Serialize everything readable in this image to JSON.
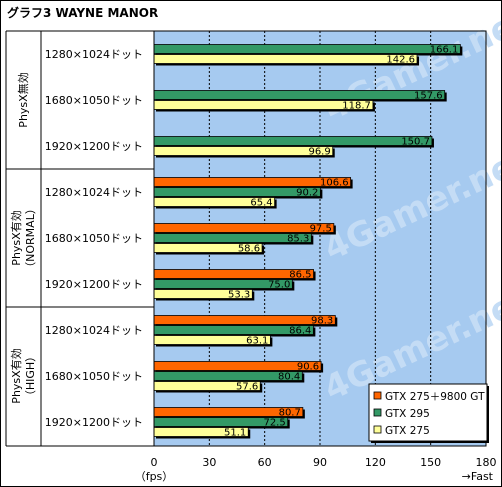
{
  "chart_data": {
    "type": "bar",
    "orientation": "horizontal",
    "title": "グラフ3 WAYNE MANOR",
    "xlabel_unit": "（fps）",
    "x_direction_note": "→Fast",
    "xlim": [
      0,
      180
    ],
    "xticks": [
      "0",
      "30",
      "60",
      "90",
      "120",
      "150",
      "180"
    ],
    "grid": true,
    "legend_position": "bottom-right",
    "colors": {
      "GTX 275＋9800 GT": "#ff6600",
      "GTX 295": "#339966",
      "GTX 275": "#ffff99",
      "plot_bg": "#a6caf0"
    },
    "groups": [
      {
        "label": "PhysX無効",
        "rows": [
          {
            "resolution": "1280×1024ドット",
            "bars": [
              {
                "series": "GTX 295",
                "value": 166.1
              },
              {
                "series": "GTX 275",
                "value": 142.6
              }
            ]
          },
          {
            "resolution": "1680×1050ドット",
            "bars": [
              {
                "series": "GTX 295",
                "value": 157.6
              },
              {
                "series": "GTX 275",
                "value": 118.7
              }
            ]
          },
          {
            "resolution": "1920×1200ドット",
            "bars": [
              {
                "series": "GTX 295",
                "value": 150.7
              },
              {
                "series": "GTX 275",
                "value": 96.9
              }
            ]
          }
        ]
      },
      {
        "label": "PhysX有効（NORMAL）",
        "label_lines": [
          "PhysX有効",
          "（NORMAL）"
        ],
        "rows": [
          {
            "resolution": "1280×1024ドット",
            "bars": [
              {
                "series": "GTX 275＋9800 GT",
                "value": 106.6
              },
              {
                "series": "GTX 295",
                "value": 90.2
              },
              {
                "series": "GTX 275",
                "value": 65.4
              }
            ]
          },
          {
            "resolution": "1680×1050ドット",
            "bars": [
              {
                "series": "GTX 275＋9800 GT",
                "value": 97.5
              },
              {
                "series": "GTX 295",
                "value": 85.3
              },
              {
                "series": "GTX 275",
                "value": 58.6
              }
            ]
          },
          {
            "resolution": "1920×1200ドット",
            "bars": [
              {
                "series": "GTX 275＋9800 GT",
                "value": 86.5
              },
              {
                "series": "GTX 295",
                "value": 75.0
              },
              {
                "series": "GTX 275",
                "value": 53.3
              }
            ]
          }
        ]
      },
      {
        "label": "PhysX有効（HIGH）",
        "label_lines": [
          "PhysX有効",
          "（HIGH）"
        ],
        "rows": [
          {
            "resolution": "1280×1024ドット",
            "bars": [
              {
                "series": "GTX 275＋9800 GT",
                "value": 98.3
              },
              {
                "series": "GTX 295",
                "value": 86.4
              },
              {
                "series": "GTX 275",
                "value": 63.1
              }
            ]
          },
          {
            "resolution": "1680×1050ドット",
            "bars": [
              {
                "series": "GTX 275＋9800 GT",
                "value": 90.6
              },
              {
                "series": "GTX 295",
                "value": 80.4
              },
              {
                "series": "GTX 275",
                "value": 57.6
              }
            ]
          },
          {
            "resolution": "1920×1200ドット",
            "bars": [
              {
                "series": "GTX 275＋9800 GT",
                "value": 80.7
              },
              {
                "series": "GTX 295",
                "value": 72.5
              },
              {
                "series": "GTX 275",
                "value": 51.1
              }
            ]
          }
        ]
      }
    ],
    "legend": [
      "GTX 275＋9800 GT",
      "GTX 295",
      "GTX 275"
    ],
    "watermark": "4Gamer.net"
  }
}
